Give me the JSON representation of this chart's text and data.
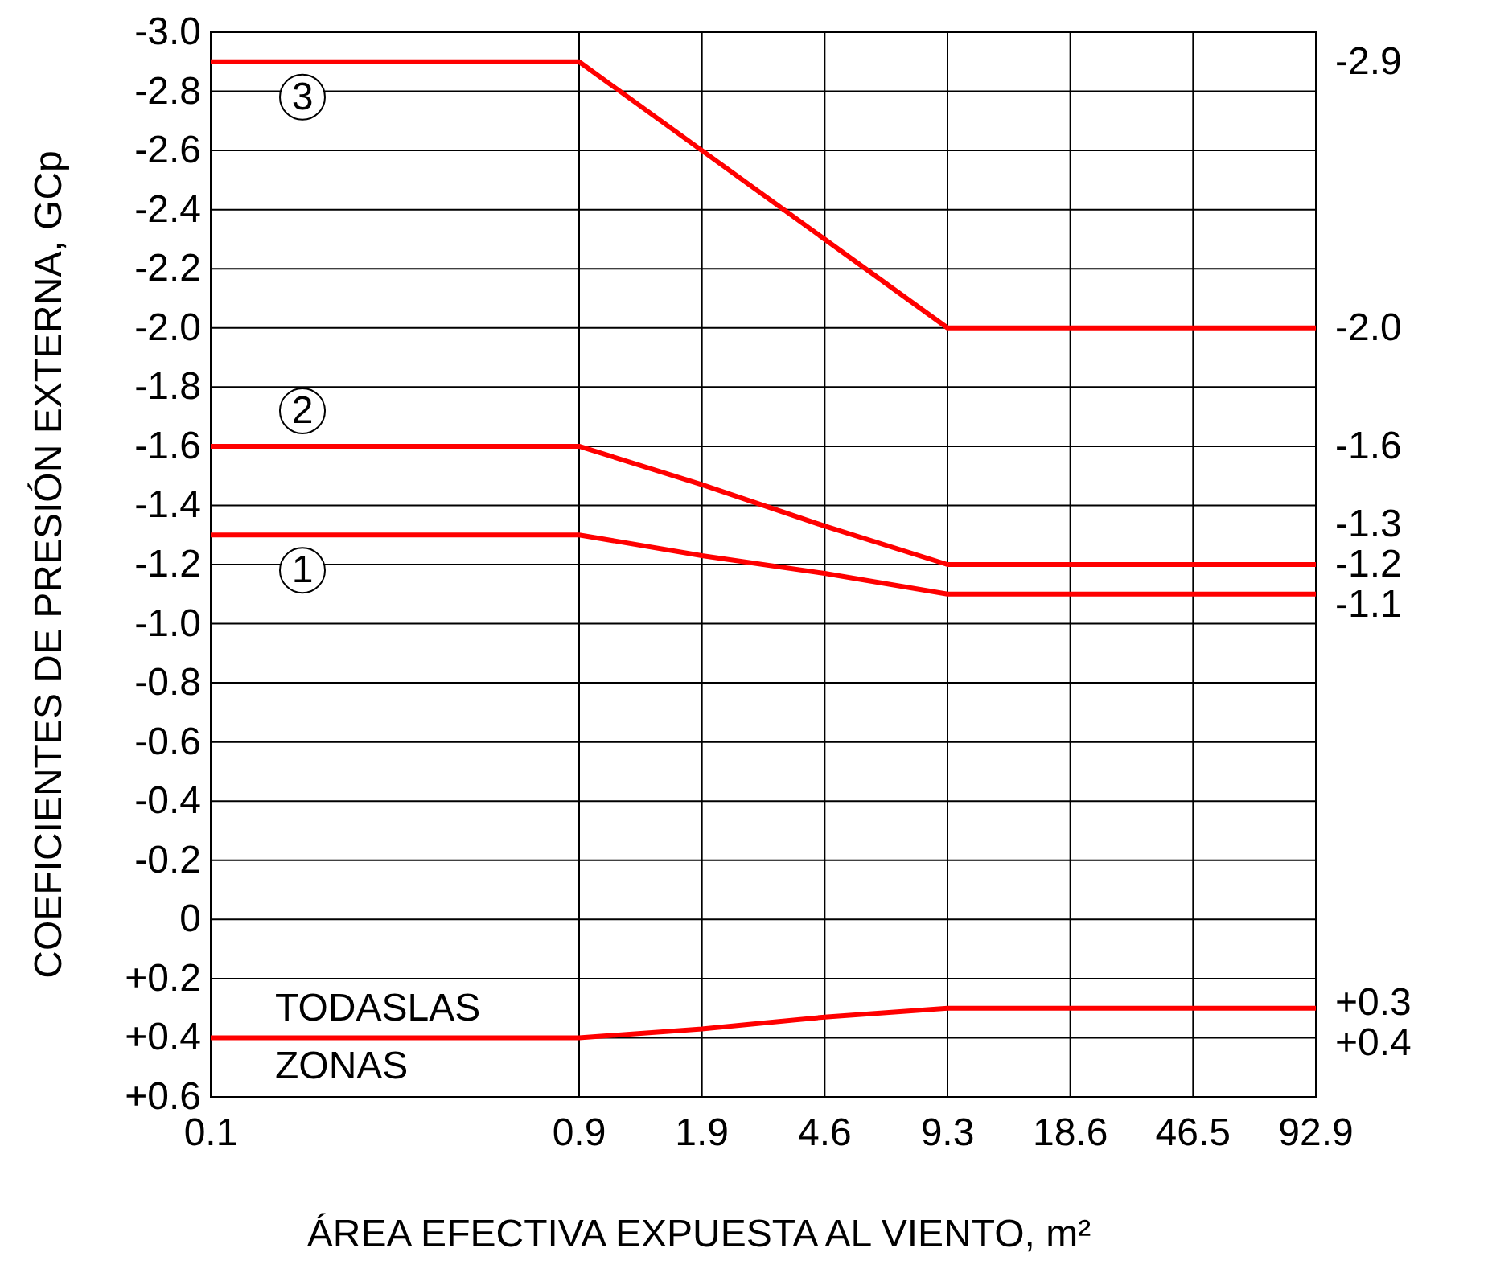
{
  "chart_data": {
    "type": "line",
    "xlabel": "ÁREA EFECTIVA EXPUESTA AL VIENTO, m²",
    "ylabel": "COEFICIENTES DE PRESIÓN EXTERNA, GCp",
    "categories": [
      "0.1",
      null,
      null,
      "0.9",
      "1.9",
      "4.6",
      "9.3",
      "18.6",
      "46.5",
      "92.9"
    ],
    "series": [
      {
        "name": "1",
        "color": "#ff0000",
        "values": [
          -1.3,
          -1.3,
          -1.3,
          -1.3,
          -1.23,
          -1.17,
          -1.1,
          -1.1,
          -1.1,
          -1.1
        ]
      },
      {
        "name": "2",
        "color": "#ff0000",
        "values": [
          -1.6,
          -1.6,
          -1.6,
          -1.6,
          -1.47,
          -1.33,
          -1.2,
          -1.2,
          -1.2,
          -1.2
        ]
      },
      {
        "name": "3",
        "color": "#ff0000",
        "values": [
          -2.9,
          -2.9,
          -2.9,
          -2.9,
          -2.6,
          -2.3,
          -2.0,
          -2.0,
          -2.0,
          -2.0
        ]
      },
      {
        "name": "TODASLAS ZONAS",
        "color": "#ff0000",
        "values": [
          0.4,
          0.4,
          0.4,
          0.4,
          0.37,
          0.33,
          0.3,
          0.3,
          0.3,
          0.3
        ]
      }
    ],
    "ylim": [
      0.6,
      -3.0
    ],
    "yticks": [
      {
        "value": 0.6,
        "label": "+0.6"
      },
      {
        "value": 0.4,
        "label": "+0.4"
      },
      {
        "value": 0.2,
        "label": "+0.2"
      },
      0,
      {
        "value": -0.2,
        "label": "-0.2"
      },
      {
        "value": -0.4,
        "label": "-0.4"
      },
      {
        "value": -0.6,
        "label": "-0.6"
      },
      {
        "value": -0.8,
        "label": "-0.8"
      },
      {
        "value": -1.0,
        "label": "-1.0"
      },
      {
        "value": -1.2,
        "label": "-1.2"
      },
      {
        "value": -1.4,
        "label": "-1.4"
      },
      {
        "value": -1.6,
        "label": "-1.6"
      },
      {
        "value": -1.8,
        "label": "-1.8"
      },
      {
        "value": -2.0,
        "label": "-2.0"
      },
      {
        "value": -2.2,
        "label": "-2.2"
      },
      {
        "value": -2.4,
        "label": "-2.4"
      },
      {
        "value": -2.6,
        "label": "-2.6"
      },
      {
        "value": -2.8,
        "label": "-2.8"
      },
      {
        "value": -3.0,
        "label": "-3.0"
      }
    ],
    "y2lim": [
      0.6,
      -3.0
    ],
    "y2ticks": [
      {
        "value": 0.4,
        "label": "+0.4"
      },
      {
        "value": 0.3,
        "label": "+0.3"
      },
      {
        "value": -1.1,
        "label": "-1.1"
      },
      {
        "value": -1.2,
        "label": "-1.2"
      },
      {
        "value": -1.3,
        "label": "-1.3"
      },
      {
        "value": -1.6,
        "label": "-1.6"
      },
      {
        "value": -2.0,
        "label": "-2.0"
      },
      {
        "value": -2.9,
        "label": "-2.9"
      }
    ],
    "grid": true
  }
}
